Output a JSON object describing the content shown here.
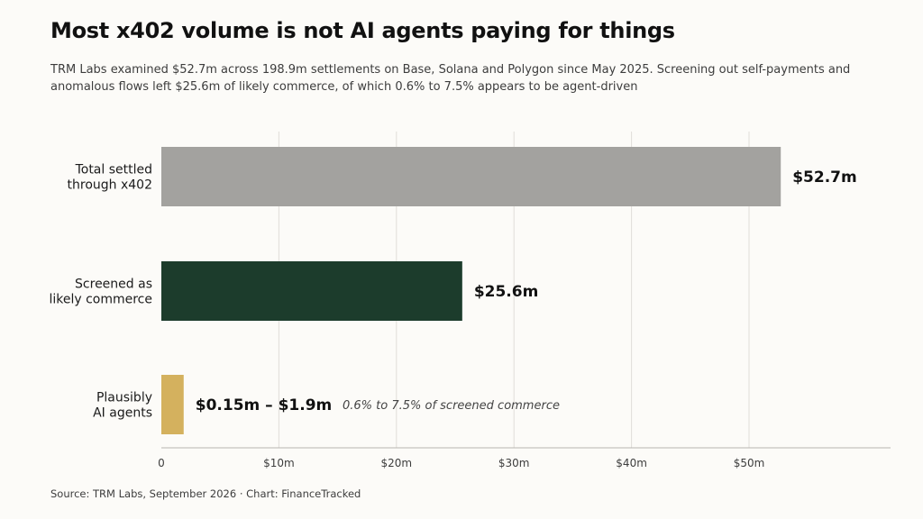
{
  "title": "Most x402 volume is not AI agents paying for things",
  "subtitle": "TRM Labs examined $52.7m across 198.9m settlements on Base, Solana and Polygon since May 2025. Screening out self-payments and anomalous flows left $25.6m of likely commerce, of which 0.6% to 7.5% appears to be agent-driven",
  "source": "Source: TRM Labs, September 2026  ·  Chart: FinanceTracked",
  "colors": {
    "total": "#a3a29f",
    "commerce": "#1c3c2c",
    "agents": "#d4b15e",
    "grid": "#e0ded9",
    "axis": "#b7b5b0"
  },
  "chart_data": {
    "type": "bar",
    "orientation": "horizontal",
    "title": "Most x402 volume is not AI agents paying for things",
    "xlabel": "",
    "ylabel": "",
    "xlim": [
      0,
      62
    ],
    "grid": true,
    "ticks": [
      {
        "value": 0,
        "label": "0"
      },
      {
        "value": 10,
        "label": "$10m"
      },
      {
        "value": 20,
        "label": "$20m"
      },
      {
        "value": 30,
        "label": "$30m"
      },
      {
        "value": 40,
        "label": "$40m"
      },
      {
        "value": 50,
        "label": "$50m"
      }
    ],
    "bars": [
      {
        "category": [
          "Total settled",
          "through x402"
        ],
        "value": 52.7,
        "value_label": "$52.7m",
        "color_key": "total"
      },
      {
        "category": [
          "Screened as",
          "likely commerce"
        ],
        "value": 25.6,
        "value_label": "$25.6m",
        "color_key": "commerce"
      },
      {
        "category": [
          "Plausibly",
          "AI agents"
        ],
        "value": 1.9,
        "range": [
          0.15,
          1.9
        ],
        "value_label": "$0.15m – $1.9m",
        "annotation": "0.6% to 7.5% of screened commerce",
        "color_key": "agents"
      }
    ]
  }
}
